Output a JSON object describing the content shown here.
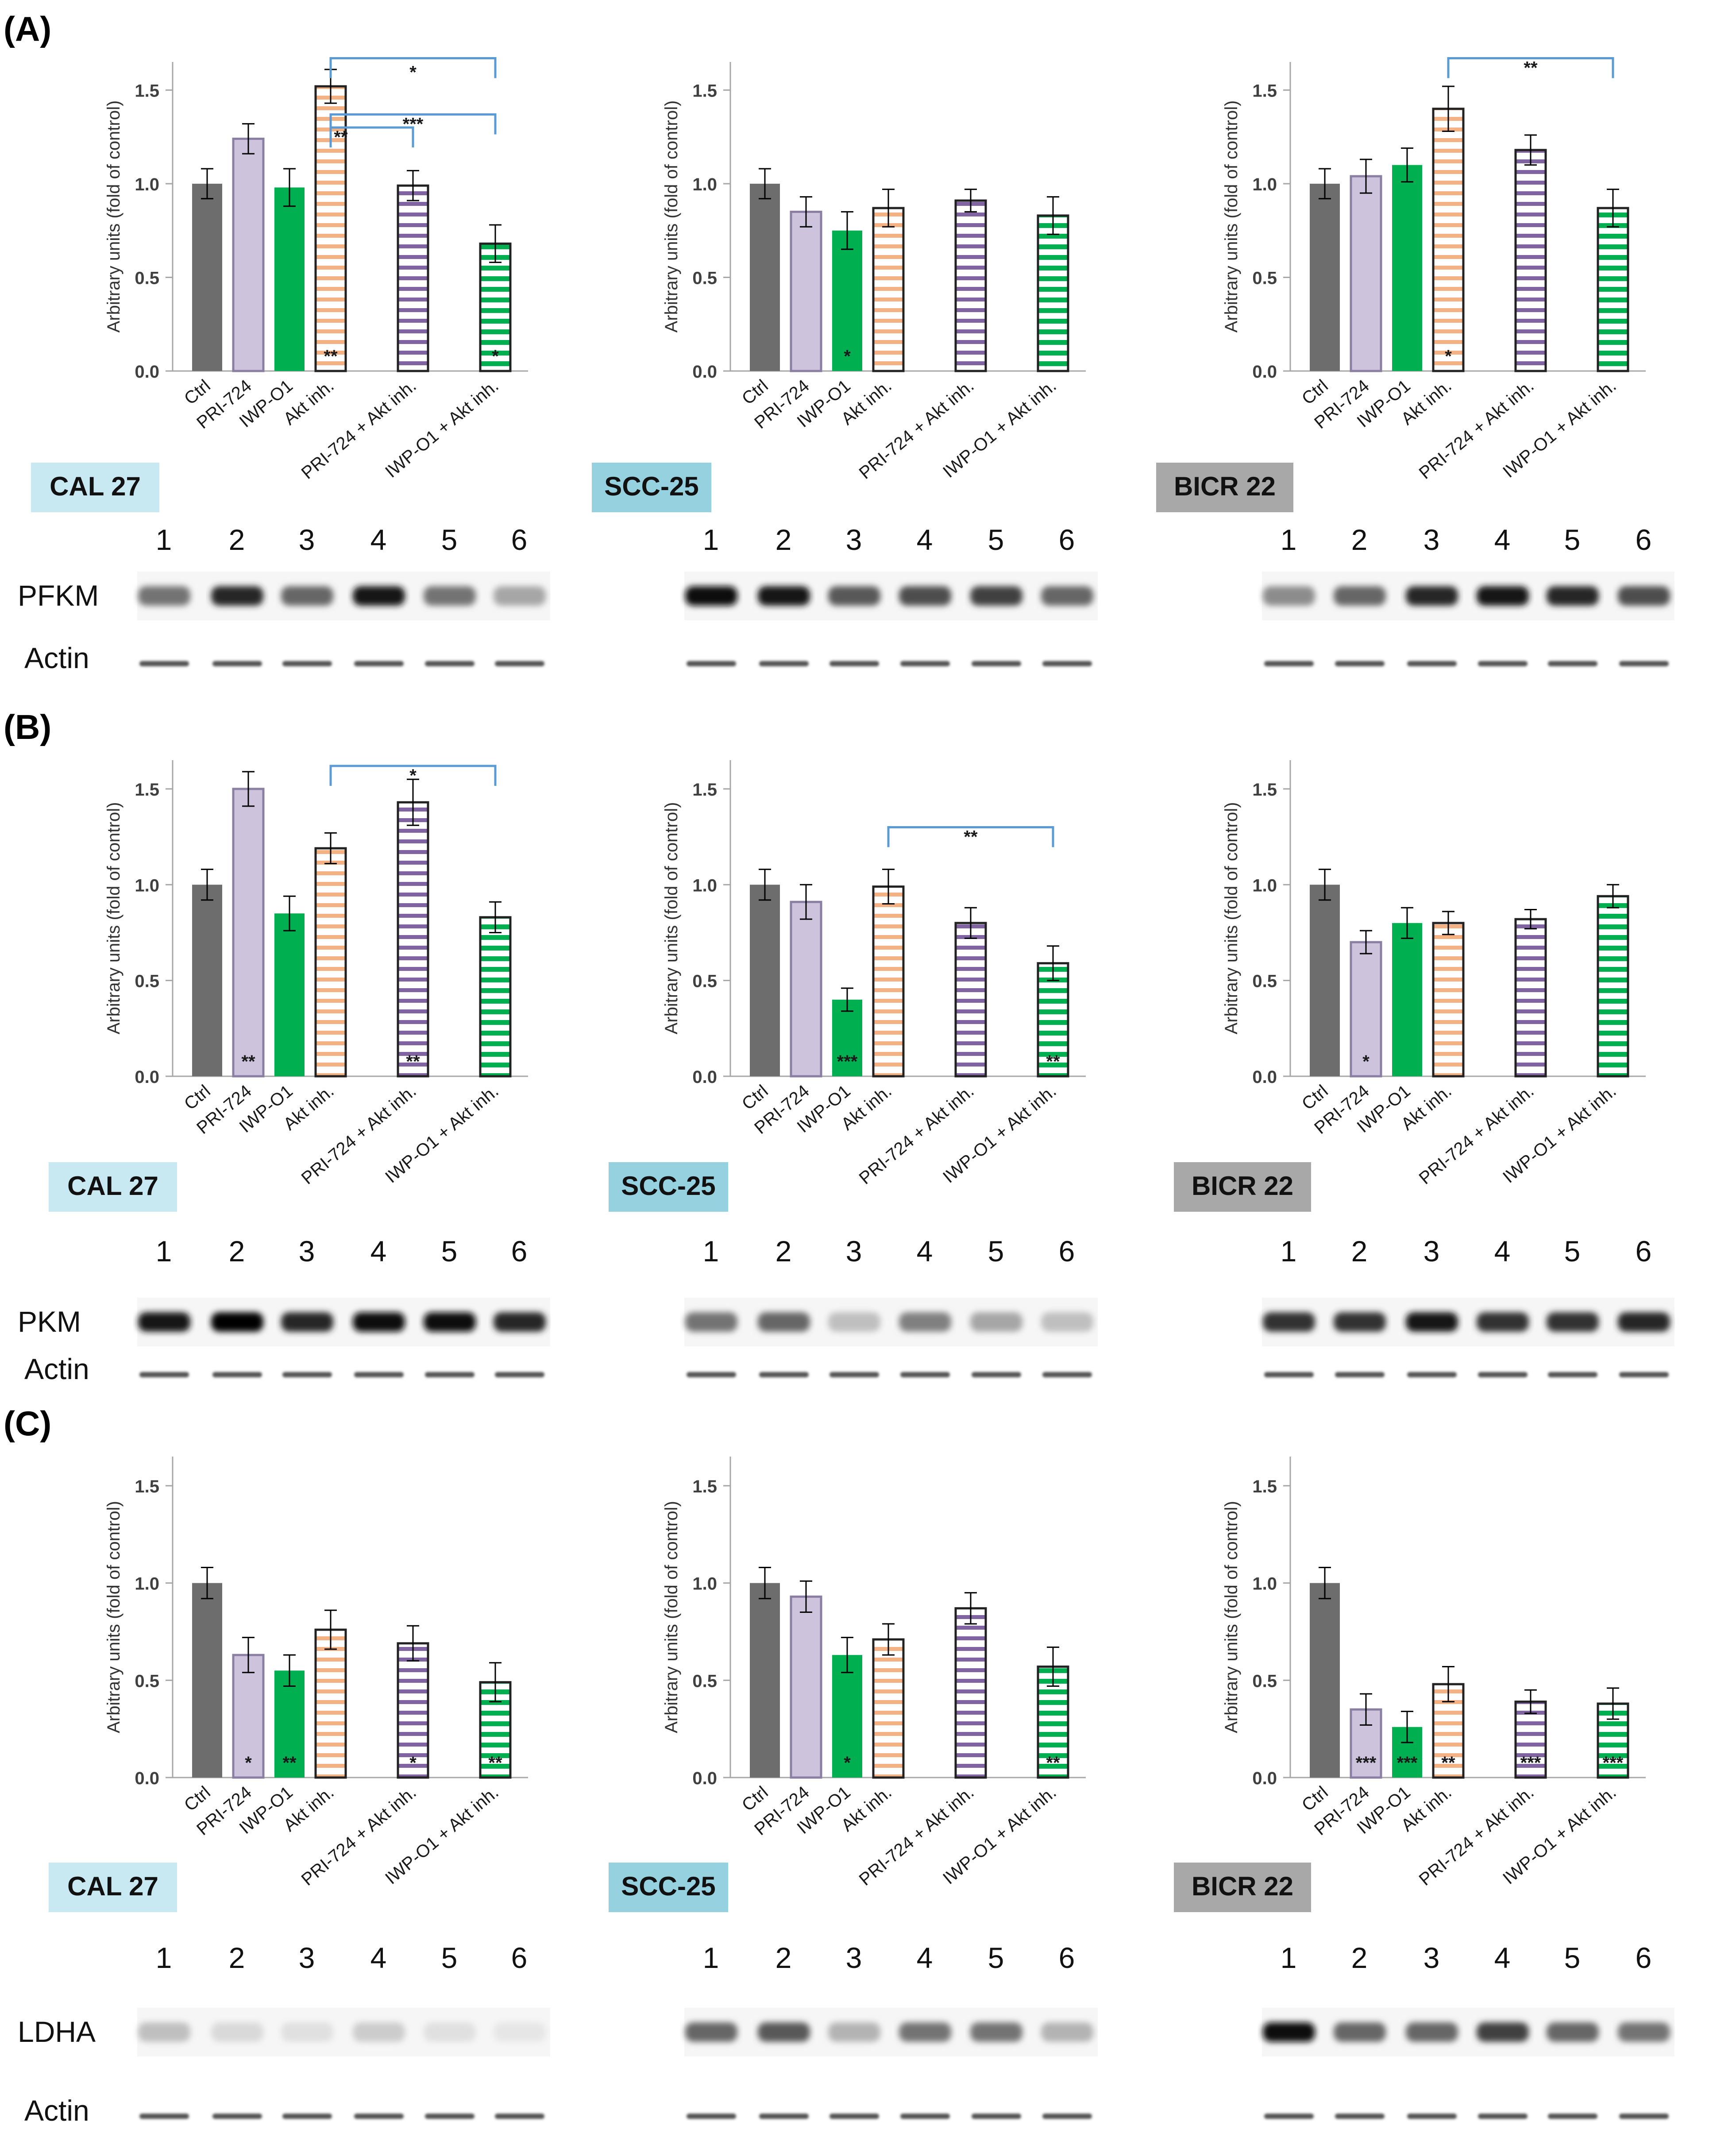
{
  "figure": {
    "categories": [
      "Ctrl",
      "PRI-724",
      "IWP-O1",
      "Akt inh.",
      "PRI-724 + Akt inh.",
      "IWP-O1 + Akt inh."
    ],
    "ylabel": "Arbitrary units (fold of control)",
    "ylim": [
      0,
      1.65
    ],
    "yticks": [
      "0.0",
      "0.5",
      "1.0",
      "1.5"
    ],
    "lanes": [
      "1",
      "2",
      "3",
      "4",
      "5",
      "6"
    ],
    "loading_control": "Actin",
    "colors": {
      "ctrl": "#6d6d6d",
      "pri724": "#cdc3dd",
      "iwp": "#00b050",
      "akt_stripe": "#f4b183",
      "pri_akt_stripe": "#8064a2",
      "iwp_akt_stripe": "#00b050",
      "bracket": "#5b9bd5",
      "label_blue": "#c9e9f2",
      "label_blue2": "#96d1df",
      "label_grey": "#a8a8a8"
    }
  },
  "panels": [
    {
      "letter": "(A)",
      "protein": "PFKM",
      "charts": [
        {
          "cell_line": "CAL 27",
          "values": [
            1.0,
            1.24,
            0.98,
            1.52,
            0.99,
            0.68
          ],
          "errors": [
            0.08,
            0.08,
            0.1,
            0.09,
            0.08,
            0.1
          ],
          "sig": [
            "",
            "",
            "",
            "**",
            "",
            "*"
          ],
          "brackets": [
            {
              "from": 3,
              "to": 5,
              "label": "*",
              "y": 1.67
            },
            {
              "from": 3,
              "to": 4,
              "label": "**",
              "y": 1.3
            },
            {
              "from": 3,
              "to": 5,
              "label": "***",
              "y": 1.37
            }
          ]
        },
        {
          "cell_line": "SCC-25",
          "values": [
            1.0,
            0.85,
            0.75,
            0.87,
            0.91,
            0.83
          ],
          "errors": [
            0.08,
            0.08,
            0.1,
            0.1,
            0.06,
            0.1
          ],
          "sig": [
            "",
            "",
            "*",
            "",
            "",
            ""
          ],
          "brackets": []
        },
        {
          "cell_line": "BICR 22",
          "values": [
            1.0,
            1.04,
            1.1,
            1.4,
            1.18,
            0.87
          ],
          "errors": [
            0.08,
            0.09,
            0.09,
            0.12,
            0.08,
            0.1
          ],
          "sig": [
            "",
            "",
            "",
            "*",
            "",
            ""
          ],
          "brackets": [
            {
              "from": 3,
              "to": 5,
              "label": "**",
              "y": 1.67
            }
          ]
        }
      ]
    },
    {
      "letter": "(B)",
      "protein": "PKM",
      "charts": [
        {
          "cell_line": "CAL 27",
          "values": [
            1.0,
            1.5,
            0.85,
            1.19,
            1.43,
            0.83
          ],
          "errors": [
            0.08,
            0.09,
            0.09,
            0.08,
            0.12,
            0.08
          ],
          "sig": [
            "",
            "**",
            "",
            "",
            "**",
            ""
          ],
          "brackets": [
            {
              "from": 3,
              "to": 5,
              "label": "*",
              "y": 1.62
            }
          ]
        },
        {
          "cell_line": "SCC-25",
          "values": [
            1.0,
            0.91,
            0.4,
            0.99,
            0.8,
            0.59
          ],
          "errors": [
            0.08,
            0.09,
            0.06,
            0.09,
            0.08,
            0.09
          ],
          "sig": [
            "",
            "",
            "***",
            "",
            "",
            "**"
          ],
          "brackets": [
            {
              "from": 3,
              "to": 5,
              "label": "**",
              "y": 1.3
            }
          ]
        },
        {
          "cell_line": "BICR 22",
          "values": [
            1.0,
            0.7,
            0.8,
            0.8,
            0.82,
            0.94
          ],
          "errors": [
            0.08,
            0.06,
            0.08,
            0.06,
            0.05,
            0.06
          ],
          "sig": [
            "",
            "*",
            "",
            "",
            "",
            ""
          ],
          "brackets": []
        }
      ]
    },
    {
      "letter": "(C)",
      "protein": "LDHA",
      "charts": [
        {
          "cell_line": "CAL 27",
          "values": [
            1.0,
            0.63,
            0.55,
            0.76,
            0.69,
            0.49
          ],
          "errors": [
            0.08,
            0.09,
            0.08,
            0.1,
            0.09,
            0.1
          ],
          "sig": [
            "",
            "*",
            "**",
            "",
            "*",
            "**"
          ],
          "brackets": []
        },
        {
          "cell_line": "SCC-25",
          "values": [
            1.0,
            0.93,
            0.63,
            0.71,
            0.87,
            0.57
          ],
          "errors": [
            0.08,
            0.08,
            0.09,
            0.08,
            0.08,
            0.1
          ],
          "sig": [
            "",
            "",
            "*",
            "",
            "",
            "**"
          ],
          "brackets": []
        },
        {
          "cell_line": "BICR 22",
          "values": [
            1.0,
            0.35,
            0.26,
            0.48,
            0.39,
            0.38
          ],
          "errors": [
            0.08,
            0.08,
            0.08,
            0.09,
            0.06,
            0.08
          ],
          "sig": [
            "",
            "***",
            "***",
            "**",
            "***",
            "***"
          ],
          "brackets": []
        }
      ]
    }
  ],
  "chart_data": [
    {
      "type": "bar",
      "title": "(A) PFKM - CAL 27",
      "categories": [
        "Ctrl",
        "PRI-724",
        "IWP-O1",
        "Akt inh.",
        "PRI-724 + Akt inh.",
        "IWP-O1 + Akt inh."
      ],
      "values": [
        1.0,
        1.24,
        0.98,
        1.52,
        0.99,
        0.68
      ],
      "ylabel": "Arbitrary units (fold of control)",
      "ylim": [
        0,
        1.65
      ]
    },
    {
      "type": "bar",
      "title": "(A) PFKM - SCC-25",
      "categories": [
        "Ctrl",
        "PRI-724",
        "IWP-O1",
        "Akt inh.",
        "PRI-724 + Akt inh.",
        "IWP-O1 + Akt inh."
      ],
      "values": [
        1.0,
        0.85,
        0.75,
        0.87,
        0.91,
        0.83
      ],
      "ylabel": "Arbitrary units (fold of control)",
      "ylim": [
        0,
        1.65
      ]
    },
    {
      "type": "bar",
      "title": "(A) PFKM - BICR 22",
      "categories": [
        "Ctrl",
        "PRI-724",
        "IWP-O1",
        "Akt inh.",
        "PRI-724 + Akt inh.",
        "IWP-O1 + Akt inh."
      ],
      "values": [
        1.0,
        1.04,
        1.1,
        1.4,
        1.18,
        0.87
      ],
      "ylabel": "Arbitrary units (fold of control)",
      "ylim": [
        0,
        1.65
      ]
    },
    {
      "type": "bar",
      "title": "(B) PKM - CAL 27",
      "categories": [
        "Ctrl",
        "PRI-724",
        "IWP-O1",
        "Akt inh.",
        "PRI-724 + Akt inh.",
        "IWP-O1 + Akt inh."
      ],
      "values": [
        1.0,
        1.5,
        0.85,
        1.19,
        1.43,
        0.83
      ],
      "ylabel": "Arbitrary units (fold of control)",
      "ylim": [
        0,
        1.65
      ]
    },
    {
      "type": "bar",
      "title": "(B) PKM - SCC-25",
      "categories": [
        "Ctrl",
        "PRI-724",
        "IWP-O1",
        "Akt inh.",
        "PRI-724 + Akt inh.",
        "IWP-O1 + Akt inh."
      ],
      "values": [
        1.0,
        0.91,
        0.4,
        0.99,
        0.8,
        0.59
      ],
      "ylabel": "Arbitrary units (fold of control)",
      "ylim": [
        0,
        1.65
      ]
    },
    {
      "type": "bar",
      "title": "(B) PKM - BICR 22",
      "categories": [
        "Ctrl",
        "PRI-724",
        "IWP-O1",
        "Akt inh.",
        "PRI-724 + Akt inh.",
        "IWP-O1 + Akt inh."
      ],
      "values": [
        1.0,
        0.7,
        0.8,
        0.8,
        0.82,
        0.94
      ],
      "ylabel": "Arbitrary units (fold of control)",
      "ylim": [
        0,
        1.65
      ]
    },
    {
      "type": "bar",
      "title": "(C) LDHA - CAL 27",
      "categories": [
        "Ctrl",
        "PRI-724",
        "IWP-O1",
        "Akt inh.",
        "PRI-724 + Akt inh.",
        "IWP-O1 + Akt inh."
      ],
      "values": [
        1.0,
        0.63,
        0.55,
        0.76,
        0.69,
        0.49
      ],
      "ylabel": "Arbitrary units (fold of control)",
      "ylim": [
        0,
        1.65
      ]
    },
    {
      "type": "bar",
      "title": "(C) LDHA - SCC-25",
      "categories": [
        "Ctrl",
        "PRI-724",
        "IWP-O1",
        "Akt inh.",
        "PRI-724 + Akt inh.",
        "IWP-O1 + Akt inh."
      ],
      "values": [
        1.0,
        0.93,
        0.63,
        0.71,
        0.87,
        0.57
      ],
      "ylabel": "Arbitrary units (fold of control)",
      "ylim": [
        0,
        1.65
      ]
    },
    {
      "type": "bar",
      "title": "(C) LDHA - BICR 22",
      "categories": [
        "Ctrl",
        "PRI-724",
        "IWP-O1",
        "Akt inh.",
        "PRI-724 + Akt inh.",
        "IWP-O1 + Akt inh."
      ],
      "values": [
        1.0,
        0.35,
        0.26,
        0.48,
        0.39,
        0.38
      ],
      "ylabel": "Arbitrary units (fold of control)",
      "ylim": [
        0,
        1.65
      ]
    }
  ]
}
